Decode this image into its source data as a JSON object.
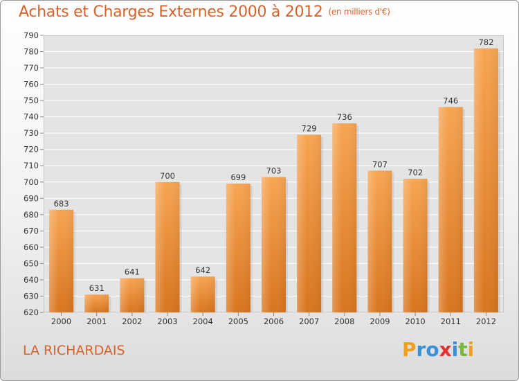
{
  "header": {
    "title": "Achats et Charges Externes 2000 à 2012",
    "subtitle": "(en milliers d'€)"
  },
  "footer": {
    "place": "LA RICHARDAIS",
    "logo": "Proxiti"
  },
  "colors": {
    "title": "#d9622b",
    "bar_top": "#f7a552",
    "bar_bottom": "#d9751e",
    "grid": "#ffffff",
    "plot_bg": "#e4e4e4"
  },
  "chart_data": {
    "type": "bar",
    "title": "Achats et Charges Externes 2000 à 2012",
    "subtitle": "(en milliers d'€)",
    "categories": [
      "2000",
      "2001",
      "2002",
      "2003",
      "2004",
      "2005",
      "2006",
      "2007",
      "2008",
      "2009",
      "2010",
      "2011",
      "2012"
    ],
    "values": [
      683,
      631,
      641,
      700,
      642,
      699,
      703,
      729,
      736,
      707,
      702,
      746,
      782
    ],
    "ylim": [
      620,
      790
    ],
    "yticks": [
      620,
      630,
      640,
      650,
      660,
      670,
      680,
      690,
      700,
      710,
      720,
      730,
      740,
      750,
      760,
      770,
      780,
      790
    ],
    "grid": true,
    "legend": "none"
  }
}
